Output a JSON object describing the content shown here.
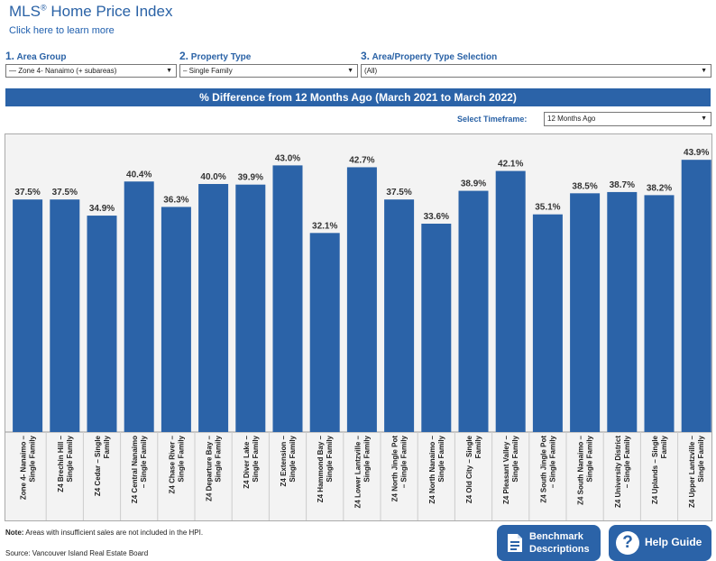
{
  "header": {
    "title": "MLS",
    "title_reg": "®",
    "title_rest": " Home Price Index",
    "learn_more": "Click here to learn more"
  },
  "selectors": [
    {
      "number": "1.",
      "label": "Area Group",
      "value": "— Zone 4- Nanaimo (+ subareas)"
    },
    {
      "number": "2.",
      "label": "Property Type",
      "value": "– Single Family"
    },
    {
      "number": "3.",
      "label": "Area/Property Type Selection",
      "value": "(All)"
    }
  ],
  "timeframe": {
    "label": "Select Timeframe:",
    "value": "12 Months Ago"
  },
  "colors": {
    "bar": "#2b63a8",
    "accent": "#2a62a6",
    "chart_bg": "#f3f3f3"
  },
  "chart_data": {
    "type": "bar",
    "title": "% Difference from 12 Months Ago (March 2021 to March 2022)",
    "categories": [
      "Zone 4- Nanaimo – Single Family",
      "Z4 Brechin Hill – Single Family",
      "Z4 Cedar – Single Family",
      "Z4 Central Nanaimo – Single Family",
      "Z4 Chase River – Single Family",
      "Z4 Departure Bay – Single Family",
      "Z4 Diver Lake – Single Family",
      "Z4 Extension – Single Family",
      "Z4 Hammond Bay – Single Family",
      "Z4 Lower Lantzville – Single Family",
      "Z4 North Jingle Pot – Single Family",
      "Z4 North Nanaimo – Single Family",
      "Z4 Old City – Single Family",
      "Z4 Pleasant Valley – Single Family",
      "Z4 South Jingle Pot – Single Family",
      "Z4 South Nanaimo – Single Family",
      "Z4 University District – Single Family",
      "Z4 Uplands – Single Family",
      "Z4 Upper Lantzville – Single Family"
    ],
    "label_lines": [
      [
        "Zone 4- Nanaimo –",
        "Single Family"
      ],
      [
        "Z4 Brechin Hill –",
        "Single Family"
      ],
      [
        "Z4 Cedar – Single",
        "Family"
      ],
      [
        "Z4 Central Nanaimo",
        "– Single Family"
      ],
      [
        "Z4 Chase River –",
        "Single Family"
      ],
      [
        "Z4 Departure Bay –",
        "Single Family"
      ],
      [
        "Z4 Diver Lake –",
        "Single Family"
      ],
      [
        "Z4 Extension –",
        "Single Family"
      ],
      [
        "Z4 Hammond Bay –",
        "Single Family"
      ],
      [
        "Z4 Lower Lantzville –",
        "Single Family"
      ],
      [
        "Z4 North Jingle Pot",
        "– Single Family"
      ],
      [
        "Z4 North Nanaimo –",
        "Single Family"
      ],
      [
        "Z4 Old City – Single",
        "Family"
      ],
      [
        "Z4 Pleasant Valley –",
        "Single Family"
      ],
      [
        "Z4 South Jingle Pot",
        "– Single Family"
      ],
      [
        "Z4 South Nanaimo –",
        "Single Family"
      ],
      [
        "Z4 University District",
        "– Single Family"
      ],
      [
        "Z4 Uplands – Single",
        "Family"
      ],
      [
        "Z4 Upper Lantzville –",
        "Single Family"
      ]
    ],
    "values": [
      37.5,
      37.5,
      34.9,
      40.4,
      36.3,
      40.0,
      39.9,
      43.0,
      32.1,
      42.7,
      37.5,
      33.6,
      38.9,
      42.1,
      35.1,
      38.5,
      38.7,
      38.2,
      43.9
    ],
    "data_labels": [
      "37.5%",
      "37.5%",
      "34.9%",
      "40.4%",
      "36.3%",
      "40.0%",
      "39.9%",
      "43.0%",
      "32.1%",
      "42.7%",
      "37.5%",
      "33.6%",
      "38.9%",
      "42.1%",
      "35.1%",
      "38.5%",
      "38.7%",
      "38.2%",
      "43.9%"
    ],
    "ylim": [
      0,
      48
    ],
    "grid": false,
    "legend": "none"
  },
  "footer": {
    "note_bold": "Note:",
    "note_text": " Areas with insufficient sales are not included in the HPI.",
    "source": "Source: Vancouver Island Real Estate Board"
  },
  "buttons": {
    "benchmark_line1": "Benchmark",
    "benchmark_line2": "Descriptions",
    "help": "Help Guide"
  }
}
